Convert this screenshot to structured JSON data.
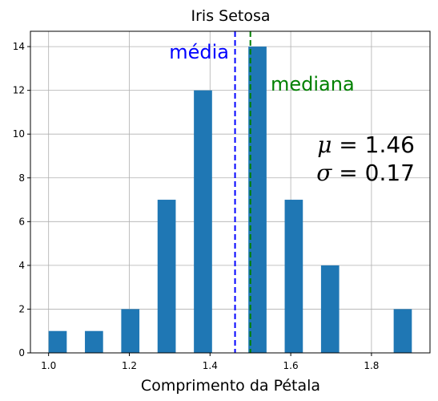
{
  "chart_data": {
    "type": "bar",
    "title": "Iris Setosa",
    "xlabel": "Comprimento da Pétala",
    "ylabel": "",
    "xlim": [
      0.955,
      1.945
    ],
    "ylim": [
      0,
      14.7
    ],
    "xticks": [
      1.0,
      1.2,
      1.4,
      1.6,
      1.8
    ],
    "xtick_labels": [
      "1.0",
      "1.2",
      "1.4",
      "1.6",
      "1.8"
    ],
    "yticks": [
      0,
      2,
      4,
      6,
      8,
      10,
      12,
      14
    ],
    "ytick_labels": [
      "0",
      "2",
      "4",
      "6",
      "8",
      "10",
      "12",
      "14"
    ],
    "grid": true,
    "bar_color": "#1f77b4",
    "bars": [
      {
        "x": 1.0,
        "x0": 1.0,
        "x1": 1.045,
        "value": 1
      },
      {
        "x": 1.1,
        "x0": 1.09,
        "x1": 1.135,
        "value": 1
      },
      {
        "x": 1.2,
        "x0": 1.18,
        "x1": 1.225,
        "value": 2
      },
      {
        "x": 1.3,
        "x0": 1.27,
        "x1": 1.315,
        "value": 7
      },
      {
        "x": 1.4,
        "x0": 1.36,
        "x1": 1.405,
        "value": 12
      },
      {
        "x": 1.5,
        "x0": 1.495,
        "x1": 1.54,
        "value": 14
      },
      {
        "x": 1.6,
        "x0": 1.585,
        "x1": 1.63,
        "value": 7
      },
      {
        "x": 1.7,
        "x0": 1.675,
        "x1": 1.72,
        "value": 4
      },
      {
        "x": 1.9,
        "x0": 1.855,
        "x1": 1.9,
        "value": 2
      }
    ],
    "lines": [
      {
        "name": "média",
        "x": 1.462,
        "color": "#0000ff"
      },
      {
        "name": "mediana",
        "x": 1.5,
        "color": "#008000"
      }
    ],
    "annotations": [
      {
        "text": "média",
        "color": "#0000ff"
      },
      {
        "text": "mediana",
        "color": "#008000"
      },
      {
        "text": "μ = 1.46",
        "symbol": "μ",
        "value": "1.46",
        "color": "#000000"
      },
      {
        "text": "σ = 0.17",
        "symbol": "σ",
        "value": "0.17",
        "color": "#000000"
      }
    ]
  }
}
